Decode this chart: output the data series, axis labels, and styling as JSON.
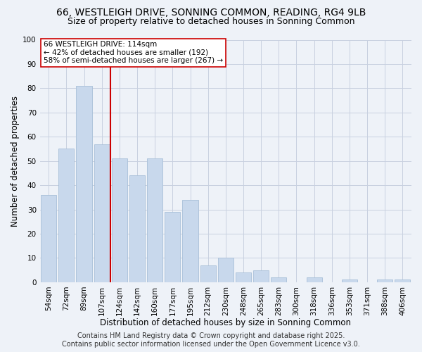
{
  "title": "66, WESTLEIGH DRIVE, SONNING COMMON, READING, RG4 9LB",
  "subtitle": "Size of property relative to detached houses in Sonning Common",
  "xlabel": "Distribution of detached houses by size in Sonning Common",
  "ylabel": "Number of detached properties",
  "categories": [
    "54sqm",
    "72sqm",
    "89sqm",
    "107sqm",
    "124sqm",
    "142sqm",
    "160sqm",
    "177sqm",
    "195sqm",
    "212sqm",
    "230sqm",
    "248sqm",
    "265sqm",
    "283sqm",
    "300sqm",
    "318sqm",
    "336sqm",
    "353sqm",
    "371sqm",
    "388sqm",
    "406sqm"
  ],
  "values": [
    36,
    55,
    81,
    57,
    51,
    44,
    51,
    29,
    34,
    7,
    10,
    4,
    5,
    2,
    0,
    2,
    0,
    1,
    0,
    1,
    1
  ],
  "bar_color": "#c8d8ec",
  "bar_edge_color": "#a8c0d8",
  "vline_x_index": 3,
  "vline_color": "#cc0000",
  "annotation_text": "66 WESTLEIGH DRIVE: 114sqm\n← 42% of detached houses are smaller (192)\n58% of semi-detached houses are larger (267) →",
  "annotation_box_color": "white",
  "annotation_box_edge_color": "#cc0000",
  "ylim": [
    0,
    100
  ],
  "yticks": [
    0,
    10,
    20,
    30,
    40,
    50,
    60,
    70,
    80,
    90,
    100
  ],
  "grid_color": "#c8d0e0",
  "background_color": "#eef2f8",
  "footer": "Contains HM Land Registry data © Crown copyright and database right 2025.\nContains public sector information licensed under the Open Government Licence v3.0.",
  "title_fontsize": 10,
  "subtitle_fontsize": 9,
  "xlabel_fontsize": 8.5,
  "ylabel_fontsize": 8.5,
  "tick_fontsize": 7.5,
  "annotation_fontsize": 7.5,
  "footer_fontsize": 7
}
